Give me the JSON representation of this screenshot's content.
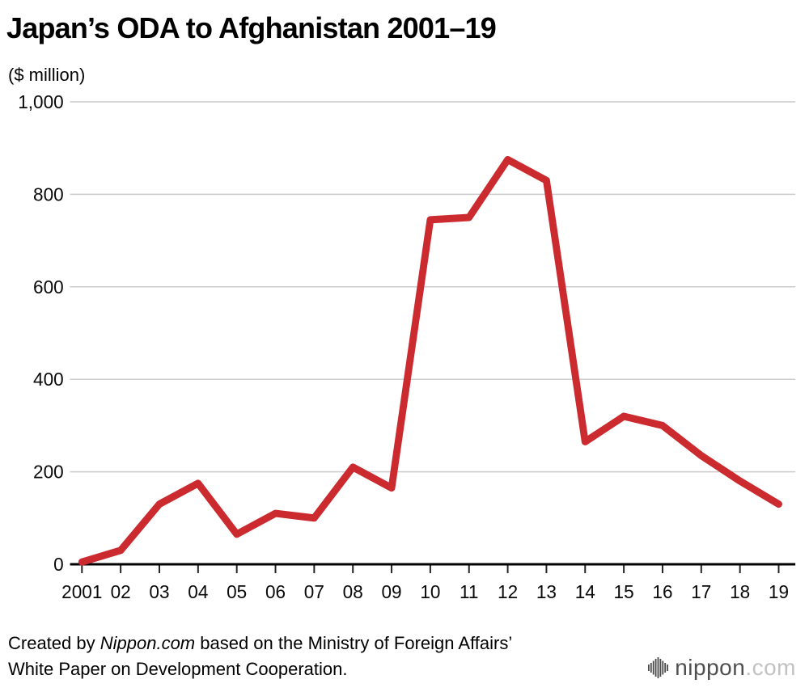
{
  "chart_data": {
    "type": "line",
    "title": "Japan’s ODA to Afghanistan 2001–19",
    "ylabel": "($ million)",
    "xlabel": "",
    "categories": [
      "2001",
      "02",
      "03",
      "04",
      "05",
      "06",
      "07",
      "08",
      "09",
      "10",
      "11",
      "12",
      "13",
      "14",
      "15",
      "16",
      "17",
      "18",
      "19"
    ],
    "values": [
      5,
      30,
      130,
      175,
      65,
      110,
      100,
      210,
      165,
      745,
      750,
      875,
      830,
      265,
      320,
      300,
      235,
      180,
      130
    ],
    "ylim": [
      0,
      1000
    ],
    "yticks": [
      0,
      200,
      400,
      600,
      800,
      1000
    ],
    "ytick_labels": [
      "0",
      "200",
      "400",
      "600",
      "800",
      "1,000"
    ],
    "grid": true,
    "legend": "none",
    "colors": {
      "line": "#cb2b2f",
      "grid": "#cccccc",
      "axis": "#000000",
      "text": "#0a0a0a"
    }
  },
  "footer": {
    "credit_prefix": "Created by ",
    "credit_source": "Nippon.com",
    "credit_line1_suffix": " based on the Ministry of Foreign Affairs’",
    "credit_line2": "White Paper on Development Cooperation.",
    "logo_main": "nippon",
    "logo_suffix": ".com",
    "logo_icon": "vertical-bars-icon"
  }
}
